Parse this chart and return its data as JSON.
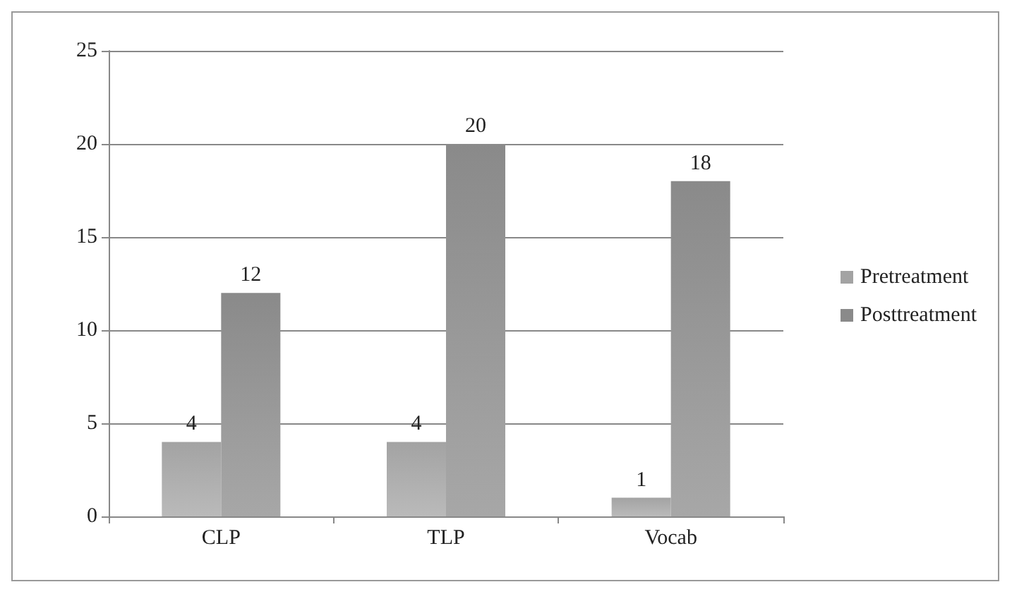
{
  "chart_data": {
    "type": "bar",
    "categories": [
      "CLP",
      "TLP",
      "Vocab"
    ],
    "series": [
      {
        "name": "Pretreatment",
        "color": "#a3a3a3",
        "values": [
          4,
          4,
          1
        ]
      },
      {
        "name": "Posttreatment",
        "color": "#8a8a8a",
        "values": [
          12,
          20,
          18
        ]
      }
    ],
    "ylim": [
      0,
      25
    ],
    "yticks": [
      0,
      5,
      10,
      15,
      20,
      25
    ],
    "grid": "y",
    "legend": "right",
    "data_labels": true
  }
}
